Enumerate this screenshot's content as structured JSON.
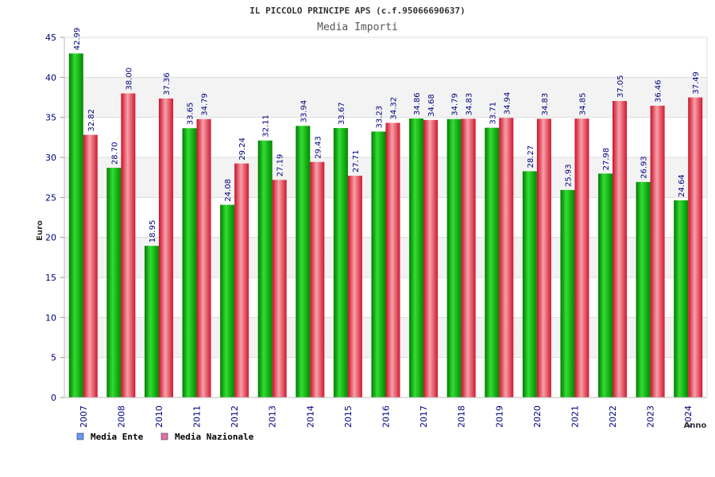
{
  "chart_data": {
    "type": "bar",
    "title": "IL PICCOLO PRINCIPE APS (c.f.95066690637)",
    "subtitle": "Media Importi",
    "xlabel": "Anno",
    "ylabel": "Euro",
    "ylim": [
      0,
      45
    ],
    "yticks": [
      0,
      5,
      10,
      15,
      20,
      25,
      30,
      35,
      40,
      45
    ],
    "categories": [
      "2007",
      "2008",
      "2010",
      "2011",
      "2012",
      "2013",
      "2014",
      "2015",
      "2016",
      "2017",
      "2018",
      "2019",
      "2020",
      "2021",
      "2022",
      "2023",
      "2024"
    ],
    "series": [
      {
        "name": "Media Ente",
        "color": "#00aa00",
        "legend_color": "#6699ff",
        "values": [
          42.99,
          28.7,
          18.95,
          33.65,
          24.08,
          32.11,
          33.94,
          33.67,
          33.23,
          34.86,
          34.79,
          33.71,
          28.27,
          25.93,
          27.98,
          26.93,
          24.64
        ],
        "labels": [
          "42.99",
          "28.70",
          "18.95",
          "33.65",
          "24.08",
          "32.11",
          "33.94",
          "33.67",
          "33.23",
          "34.86",
          "34.79",
          "33.71",
          "28.27",
          "25.93",
          "27.98",
          "26.93",
          "24.64"
        ]
      },
      {
        "name": "Media Nazionale",
        "color": "#e8283c",
        "legend_color": "#e070a8",
        "values": [
          32.82,
          38.0,
          37.36,
          34.79,
          29.24,
          27.19,
          29.43,
          27.71,
          34.32,
          34.68,
          34.83,
          34.94,
          34.83,
          34.85,
          37.05,
          36.46,
          37.49
        ],
        "labels": [
          "32.82",
          "38.00",
          "37.36",
          "34.79",
          "29.24",
          "27.19",
          "29.43",
          "27.71",
          "34.32",
          "34.68",
          "34.83",
          "34.94",
          "34.83",
          "34.85",
          "37.05",
          "36.46",
          "37.49"
        ]
      }
    ],
    "grid": true,
    "legend": "bottom-left"
  }
}
